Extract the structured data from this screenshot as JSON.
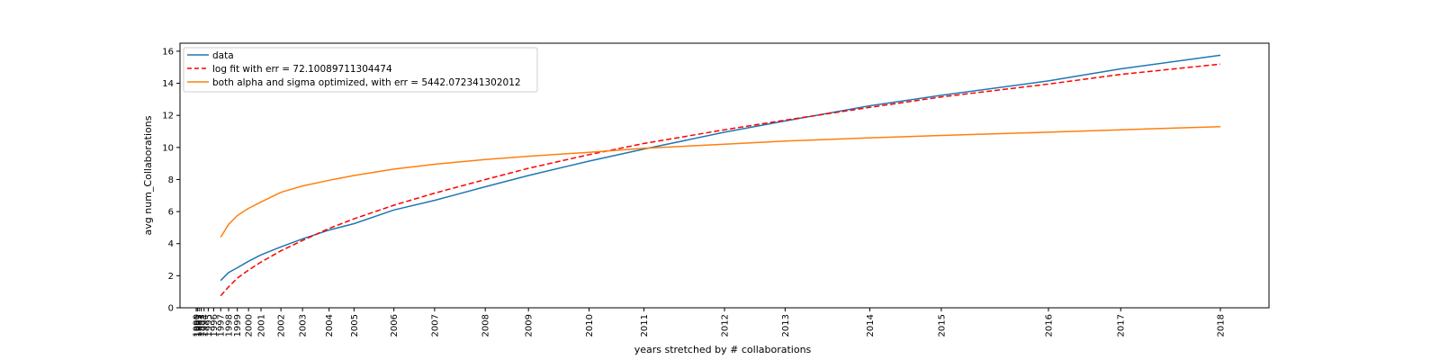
{
  "chart_data": {
    "type": "line",
    "xlabel": "years stretched by # collaborations",
    "ylabel": "avg num_Collaborations",
    "ylim": [
      0,
      16.5
    ],
    "yticks": [
      0,
      2,
      4,
      6,
      8,
      10,
      12,
      14,
      16
    ],
    "x_tick_labels": [
      "1990",
      "1991",
      "1992",
      "1993",
      "1994",
      "1995",
      "1996",
      "1997",
      "1998",
      "1999",
      "2000",
      "2001",
      "2002",
      "2003",
      "2004",
      "2005",
      "2006",
      "2007",
      "2008",
      "2009",
      "2010",
      "2011",
      "2012",
      "2013",
      "2014",
      "2015",
      "2016",
      "2017",
      "2018"
    ],
    "x_tick_values": [
      0.0,
      0.15,
      0.35,
      0.6,
      0.95,
      1.45,
      2.1,
      2.95,
      3.9,
      4.95,
      6.3,
      7.8,
      10.2,
      12.8,
      16.0,
      19.0,
      23.8,
      28.7,
      34.8,
      40.0,
      47.3,
      53.9,
      63.6,
      70.9,
      81.1,
      89.7,
      102.6,
      111.3,
      123.3
    ],
    "grid": false,
    "legend_position": "upper-left",
    "series": [
      {
        "name": "data",
        "color": "#1f77b4",
        "dash": "solid",
        "x": [
          2.95,
          3.9,
          4.95,
          6.3,
          7.8,
          10.2,
          12.8,
          16.0,
          19.0,
          23.8,
          28.7,
          34.8,
          40.0,
          47.3,
          53.9,
          63.6,
          70.9,
          81.1,
          89.7,
          102.6,
          111.3,
          123.3
        ],
        "values": [
          1.7,
          2.2,
          2.5,
          2.9,
          3.3,
          3.8,
          4.3,
          4.85,
          5.25,
          6.1,
          6.7,
          7.55,
          8.25,
          9.15,
          9.9,
          10.95,
          11.65,
          12.6,
          13.25,
          14.15,
          14.9,
          15.75
        ]
      },
      {
        "name": "log fit with err = 72.10089711304474",
        "color": "#ff0000",
        "dash": "dashed",
        "x": [
          2.95,
          3.9,
          4.95,
          6.3,
          7.8,
          10.2,
          12.8,
          16.0,
          19.0,
          23.8,
          28.7,
          34.8,
          40.0,
          47.3,
          53.9,
          63.6,
          70.9,
          81.1,
          89.7,
          102.6,
          111.3,
          123.3
        ],
        "values": [
          0.75,
          1.3,
          1.85,
          2.35,
          2.85,
          3.55,
          4.2,
          4.95,
          5.55,
          6.4,
          7.15,
          8.0,
          8.7,
          9.55,
          10.25,
          11.1,
          11.7,
          12.5,
          13.15,
          13.95,
          14.55,
          15.2
        ]
      },
      {
        "name": "both alpha and sigma optimized, with err = 5442.072341302012",
        "color": "#ff7f0e",
        "dash": "solid",
        "x": [
          2.95,
          3.9,
          4.95,
          6.3,
          7.8,
          10.2,
          12.8,
          16.0,
          19.0,
          23.8,
          28.7,
          34.8,
          40.0,
          47.3,
          53.9,
          63.6,
          70.9,
          81.1,
          89.7,
          102.6,
          111.3,
          123.3
        ],
        "values": [
          4.4,
          5.2,
          5.75,
          6.2,
          6.6,
          7.2,
          7.6,
          7.95,
          8.25,
          8.65,
          8.95,
          9.25,
          9.45,
          9.7,
          9.95,
          10.2,
          10.4,
          10.6,
          10.75,
          10.95,
          11.1,
          11.3
        ]
      }
    ]
  }
}
